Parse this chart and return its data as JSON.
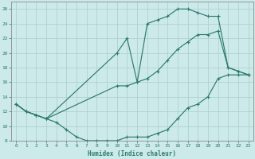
{
  "xlabel": "Humidex (Indice chaleur)",
  "bg_color": "#cdeaea",
  "grid_color": "#b0d0d0",
  "line_color": "#2d7a6e",
  "xlim": [
    -0.5,
    23.5
  ],
  "ylim": [
    8,
    27
  ],
  "xticks": [
    0,
    1,
    2,
    3,
    4,
    5,
    6,
    7,
    8,
    9,
    10,
    11,
    12,
    13,
    14,
    15,
    16,
    17,
    18,
    19,
    20,
    21,
    22,
    23
  ],
  "yticks": [
    8,
    10,
    12,
    14,
    16,
    18,
    20,
    22,
    24,
    26
  ],
  "curve_upper_x": [
    0,
    1,
    2,
    3,
    10,
    11,
    12,
    13,
    14,
    15,
    16,
    17,
    18,
    19,
    20,
    21,
    22,
    23
  ],
  "curve_upper_y": [
    13,
    12,
    11.5,
    11,
    20,
    22,
    16,
    24,
    24.5,
    25,
    26,
    26,
    25.5,
    25,
    25,
    18,
    17.5,
    17
  ],
  "curve_dip_x": [
    0,
    1,
    2,
    3,
    4,
    5,
    6,
    7,
    8,
    9,
    10,
    11,
    12,
    13,
    14,
    15,
    16,
    17,
    18,
    19,
    20,
    21,
    22,
    23
  ],
  "curve_dip_y": [
    13,
    12,
    11.5,
    11,
    10.5,
    9.5,
    8.5,
    8,
    8,
    8,
    8,
    8.5,
    8.5,
    8.5,
    9,
    9.5,
    11,
    12.5,
    13,
    14,
    16.5,
    17,
    17,
    17
  ],
  "curve_mid_x": [
    0,
    1,
    2,
    3,
    10,
    11,
    12,
    13,
    14,
    15,
    16,
    17,
    18,
    19,
    20,
    21,
    22,
    23
  ],
  "curve_mid_y": [
    13,
    12,
    11.5,
    11,
    15.5,
    15.5,
    16,
    16.5,
    17.5,
    19,
    20.5,
    21.5,
    22.5,
    22.5,
    23,
    18,
    17.5,
    17
  ]
}
